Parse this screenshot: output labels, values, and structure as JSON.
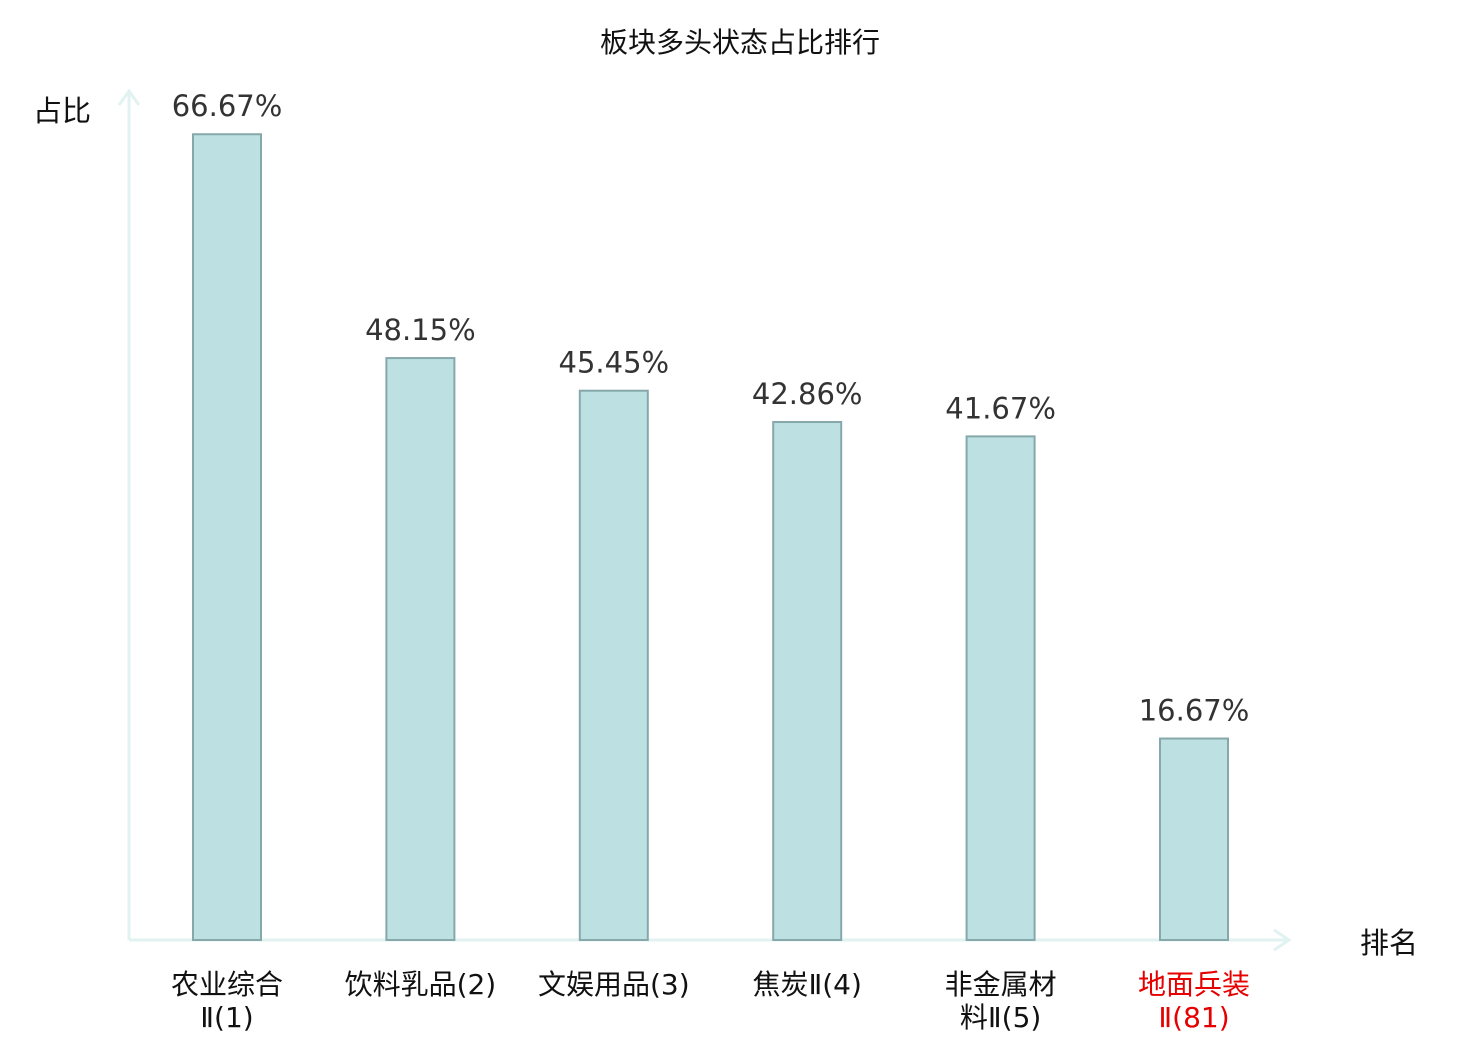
{
  "chart_data": {
    "type": "bar",
    "title": "板块多头状态占比排行",
    "ylabel": "占比",
    "xlabel": "排名",
    "ylim": [
      0,
      70
    ],
    "grid": false,
    "categories": [
      {
        "lines": [
          "农业综合",
          "Ⅱ(1)"
        ],
        "highlight": false
      },
      {
        "lines": [
          "饮料乳品(2)"
        ],
        "highlight": false
      },
      {
        "lines": [
          "文娱用品(3)"
        ],
        "highlight": false
      },
      {
        "lines": [
          "焦炭Ⅱ(4)"
        ],
        "highlight": false
      },
      {
        "lines": [
          "非金属材",
          "料Ⅱ(5)"
        ],
        "highlight": false
      },
      {
        "lines": [
          "地面兵装",
          "Ⅱ(81)"
        ],
        "highlight": true
      }
    ],
    "values": [
      66.67,
      48.15,
      45.45,
      42.86,
      41.67,
      16.67
    ],
    "value_labels": [
      "66.67%",
      "48.15%",
      "45.45%",
      "42.86%",
      "41.67%",
      "16.67%"
    ]
  },
  "colors": {
    "bar_fill": "#bde0e3",
    "bar_stroke": "#86a8aa",
    "axis": "#e1f3f1",
    "text": "#333333",
    "label": "#111111",
    "highlight": "#e60000"
  }
}
